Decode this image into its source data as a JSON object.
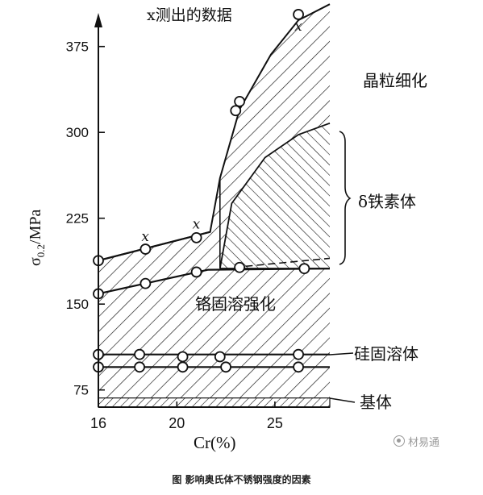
{
  "colors": {
    "ink": "#111111",
    "background": "#ffffff",
    "watermark": "#9a9a9a"
  },
  "caption": "图 影响奥氏体不锈钢强度的因素",
  "watermark": {
    "text": "材易通",
    "icon": "wechat-icon"
  },
  "chart_data": {
    "type": "area",
    "title": "x测出的数据",
    "xlabel": "Cr(%)",
    "ylabel_main": "σ",
    "ylabel_sub": "0.2",
    "ylabel_tail": "/MPa",
    "xticks": [
      "16",
      "20",
      "25"
    ],
    "xtick_values": [
      16,
      20,
      25
    ],
    "yticks": [
      "75",
      "150",
      "225",
      "300",
      "375"
    ],
    "ytick_values": [
      75,
      150,
      225,
      300,
      375
    ],
    "xlim": [
      16,
      27.8
    ],
    "ylim": [
      60,
      410
    ],
    "grid": false,
    "regions": [
      {
        "name": "基体",
        "y_from": 60,
        "y_to": 68
      },
      {
        "name": "硅固溶体",
        "y_from": 68,
        "y_to": 95
      },
      {
        "name": "铬固溶强化",
        "y_from": 95,
        "y_to": 181
      },
      {
        "name": "δ铁素体",
        "y_from": 181,
        "y_to": 308
      },
      {
        "name": "晶粒细化",
        "y_from": 181,
        "y_to": 410
      }
    ],
    "region_labels": [
      "晶粒细化",
      "δ铁素体",
      "铬固溶强化",
      "硅固溶体",
      "基体"
    ],
    "series": [
      {
        "points": [
          [
            16,
            95
          ],
          [
            18.1,
            95
          ],
          [
            20.3,
            95
          ],
          [
            22.5,
            95
          ],
          [
            26.2,
            95
          ]
        ]
      },
      {
        "points": [
          [
            16,
            106
          ],
          [
            18.1,
            106
          ],
          [
            20.3,
            104
          ],
          [
            22.2,
            104
          ],
          [
            26.2,
            106
          ]
        ]
      },
      {
        "points": [
          [
            16,
            159
          ],
          [
            18.4,
            168
          ],
          [
            21,
            178
          ],
          [
            23.2,
            182
          ],
          [
            26.5,
            181
          ]
        ]
      },
      {
        "points": [
          [
            16,
            188
          ],
          [
            18.4,
            198
          ],
          [
            21,
            208
          ],
          [
            23,
            319
          ],
          [
            23.2,
            327
          ],
          [
            26.2,
            403
          ]
        ]
      }
    ],
    "upper_boundary": [
      [
        16,
        188
      ],
      [
        21.7,
        213
      ],
      [
        22.2,
        260
      ],
      [
        23.2,
        320
      ],
      [
        24.8,
        368
      ],
      [
        26.2,
        398
      ],
      [
        27.8,
        412
      ]
    ],
    "middle_boundary": [
      [
        16,
        159
      ],
      [
        21.6,
        180
      ],
      [
        27.8,
        181
      ]
    ],
    "delta_boundary": [
      [
        22.2,
        181
      ],
      [
        22.8,
        238
      ],
      [
        24.5,
        278
      ],
      [
        26.2,
        298
      ],
      [
        27.8,
        308
      ]
    ],
    "x_markers": [
      [
        18.4,
        205
      ],
      [
        21,
        216
      ],
      [
        26.2,
        389
      ]
    ],
    "marker_symbol": "x",
    "delta_bracket": {
      "y_from": 181,
      "y_to": 308
    }
  }
}
